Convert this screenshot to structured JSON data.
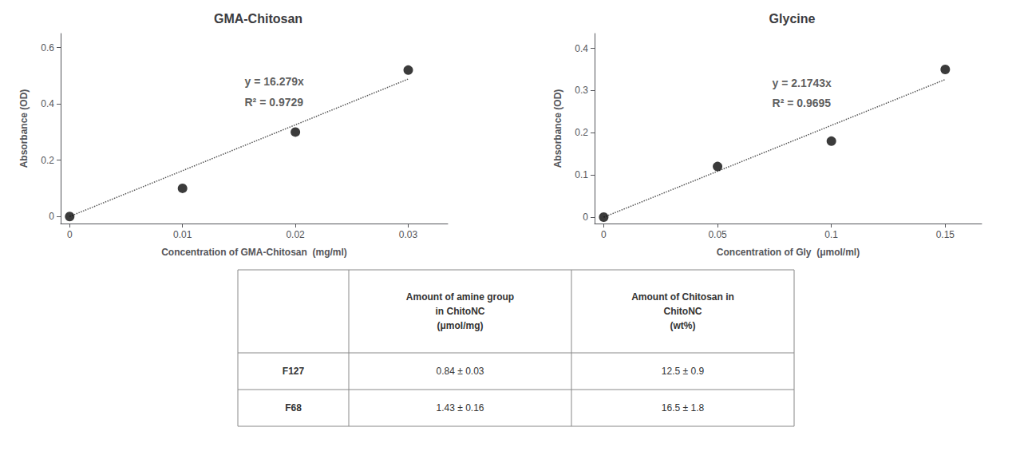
{
  "chart_data": [
    {
      "type": "scatter",
      "title": "GMA-Chitosan",
      "x": [
        0,
        0.01,
        0.02,
        0.03
      ],
      "values": [
        0,
        0.1,
        0.3,
        0.52
      ],
      "color": "#0a0a0a",
      "marker": "circle",
      "xlabel": "Concentration of GMA-Chitosan  (mg/ml)",
      "ylabel": "Absorbance (OD)",
      "xlim": [
        -0.0008,
        0.0335
      ],
      "ylim": [
        -0.025,
        0.65
      ],
      "xticks": [
        0,
        0.01,
        0.02,
        0.03
      ],
      "yticks": [
        0,
        0.2,
        0.4,
        0.6
      ],
      "grid": false,
      "trendline": {
        "x": [
          0,
          0.03
        ],
        "values": [
          0,
          0.48837
        ],
        "color": "#555555",
        "line_style": "dotted"
      },
      "annotations": [
        {
          "text": "y = 16.279x",
          "x": 0.0155,
          "y": 0.46
        },
        {
          "text": "R² = 0.9729",
          "x": 0.0155,
          "y": 0.385
        }
      ]
    },
    {
      "type": "scatter",
      "title": "Glycine",
      "x": [
        0,
        0.05,
        0.1,
        0.15
      ],
      "values": [
        0,
        0.12,
        0.18,
        0.35
      ],
      "color": "#0a0a0a",
      "marker": "circle",
      "xlabel": "Concentration of Gly  (μmol/ml)",
      "ylabel": "Absorbance (OD)",
      "xlim": [
        -0.004,
        0.166
      ],
      "ylim": [
        -0.015,
        0.435
      ],
      "xticks": [
        0,
        0.05,
        0.1,
        0.15
      ],
      "yticks": [
        0,
        0.1,
        0.2,
        0.3,
        0.4
      ],
      "grid": false,
      "trendline": {
        "x": [
          0,
          0.15
        ],
        "values": [
          0,
          0.326145
        ],
        "color": "#555555",
        "line_style": "dotted"
      },
      "annotations": [
        {
          "text": "y = 2.1743x",
          "x": 0.074,
          "y": 0.305
        },
        {
          "text": "R² = 0.9695",
          "x": 0.074,
          "y": 0.257
        }
      ]
    },
    {
      "type": "table",
      "color": "#888888",
      "columns": [
        null,
        "Amount of amine group\nin ChitoNC\n(μmol/mg)",
        "Amount of Chitosan in\nChitoNC\n(wt%)"
      ],
      "rows": [
        [
          "F127",
          "0.84 ± 0.03",
          "12.5 ± 0.9"
        ],
        [
          "F68",
          "1.43 ± 0.16",
          "16.5 ± 1.8"
        ]
      ]
    }
  ]
}
